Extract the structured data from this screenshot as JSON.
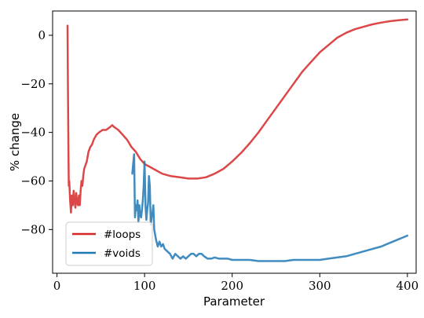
{
  "chart_data": {
    "type": "line",
    "title": "",
    "xlabel": "Parameter",
    "ylabel": "% change",
    "xlim": [
      -5,
      410
    ],
    "ylim": [
      -98,
      10
    ],
    "xticks": [
      0,
      100,
      200,
      300,
      400
    ],
    "xtick_labels": [
      "0",
      "100",
      "200",
      "300",
      "400"
    ],
    "yticks": [
      0,
      -20,
      -40,
      -60,
      -80
    ],
    "ytick_labels": [
      "0",
      "−20",
      "−40",
      "−60",
      "−80"
    ],
    "grid": false,
    "legend_placement": "lower-left",
    "series": [
      {
        "name": "#loops",
        "color": "#d62728",
        "points": [
          [
            12,
            4
          ],
          [
            12.5,
            -20
          ],
          [
            13,
            -45
          ],
          [
            13.5,
            -62
          ],
          [
            14,
            -60
          ],
          [
            15,
            -68
          ],
          [
            16,
            -73
          ],
          [
            17,
            -66
          ],
          [
            18,
            -70
          ],
          [
            19,
            -64
          ],
          [
            20,
            -68
          ],
          [
            21,
            -71
          ],
          [
            22,
            -65
          ],
          [
            23,
            -69
          ],
          [
            24,
            -70
          ],
          [
            25,
            -66
          ],
          [
            26,
            -70
          ],
          [
            27,
            -64
          ],
          [
            28,
            -60
          ],
          [
            29,
            -62
          ],
          [
            30,
            -58
          ],
          [
            31,
            -55
          ],
          [
            32,
            -54
          ],
          [
            34,
            -52
          ],
          [
            36,
            -48
          ],
          [
            38,
            -46
          ],
          [
            40,
            -45
          ],
          [
            42,
            -43
          ],
          [
            45,
            -41
          ],
          [
            48,
            -40
          ],
          [
            52,
            -39
          ],
          [
            56,
            -39
          ],
          [
            60,
            -38
          ],
          [
            63,
            -37
          ],
          [
            66,
            -38
          ],
          [
            70,
            -39
          ],
          [
            75,
            -41
          ],
          [
            80,
            -43
          ],
          [
            85,
            -46
          ],
          [
            90,
            -48
          ],
          [
            95,
            -51
          ],
          [
            100,
            -53
          ],
          [
            110,
            -55
          ],
          [
            120,
            -57
          ],
          [
            130,
            -58
          ],
          [
            140,
            -58.5
          ],
          [
            150,
            -59
          ],
          [
            160,
            -59
          ],
          [
            170,
            -58.5
          ],
          [
            180,
            -57
          ],
          [
            190,
            -55
          ],
          [
            200,
            -52
          ],
          [
            210,
            -48.5
          ],
          [
            220,
            -44.5
          ],
          [
            230,
            -40
          ],
          [
            240,
            -35
          ],
          [
            250,
            -30
          ],
          [
            260,
            -25
          ],
          [
            270,
            -20
          ],
          [
            280,
            -15
          ],
          [
            290,
            -11
          ],
          [
            300,
            -7
          ],
          [
            310,
            -4
          ],
          [
            320,
            -1
          ],
          [
            330,
            1
          ],
          [
            340,
            2.5
          ],
          [
            350,
            3.5
          ],
          [
            360,
            4.5
          ],
          [
            370,
            5.2
          ],
          [
            380,
            5.8
          ],
          [
            390,
            6.2
          ],
          [
            400,
            6.5
          ]
        ]
      },
      {
        "name": "#voids",
        "color": "#1f77b4",
        "points": [
          [
            86,
            -57
          ],
          [
            87,
            -53
          ],
          [
            88,
            -49
          ],
          [
            89,
            -75
          ],
          [
            90,
            -70
          ],
          [
            91,
            -72
          ],
          [
            92,
            -68
          ],
          [
            93,
            -77
          ],
          [
            94,
            -70
          ],
          [
            95,
            -74
          ],
          [
            96,
            -75
          ],
          [
            97,
            -72
          ],
          [
            98,
            -68
          ],
          [
            99,
            -62
          ],
          [
            100,
            -52
          ],
          [
            101,
            -70
          ],
          [
            102,
            -76
          ],
          [
            103,
            -72
          ],
          [
            104,
            -69
          ],
          [
            105,
            -58
          ],
          [
            106,
            -62
          ],
          [
            107,
            -78
          ],
          [
            108,
            -75
          ],
          [
            109,
            -73
          ],
          [
            110,
            -70
          ],
          [
            111,
            -80
          ],
          [
            112,
            -82
          ],
          [
            113,
            -84
          ],
          [
            115,
            -87
          ],
          [
            117,
            -85
          ],
          [
            119,
            -87
          ],
          [
            121,
            -86
          ],
          [
            123,
            -88
          ],
          [
            126,
            -89
          ],
          [
            129,
            -90
          ],
          [
            132,
            -92
          ],
          [
            135,
            -90
          ],
          [
            138,
            -91
          ],
          [
            141,
            -92
          ],
          [
            144,
            -91
          ],
          [
            147,
            -92
          ],
          [
            150,
            -91
          ],
          [
            153,
            -90
          ],
          [
            156,
            -90
          ],
          [
            159,
            -91
          ],
          [
            162,
            -90
          ],
          [
            165,
            -90
          ],
          [
            168,
            -91
          ],
          [
            172,
            -92
          ],
          [
            176,
            -92
          ],
          [
            180,
            -91.5
          ],
          [
            185,
            -92
          ],
          [
            190,
            -92
          ],
          [
            195,
            -92
          ],
          [
            200,
            -92.5
          ],
          [
            210,
            -92.5
          ],
          [
            220,
            -92.5
          ],
          [
            230,
            -93
          ],
          [
            240,
            -93
          ],
          [
            250,
            -93
          ],
          [
            260,
            -93
          ],
          [
            270,
            -92.5
          ],
          [
            280,
            -92.5
          ],
          [
            290,
            -92.5
          ],
          [
            300,
            -92.5
          ],
          [
            310,
            -92
          ],
          [
            320,
            -91.5
          ],
          [
            330,
            -91
          ],
          [
            340,
            -90
          ],
          [
            350,
            -89
          ],
          [
            360,
            -88
          ],
          [
            370,
            -87
          ],
          [
            380,
            -85.5
          ],
          [
            390,
            -84
          ],
          [
            400,
            -82.5
          ]
        ]
      }
    ]
  }
}
